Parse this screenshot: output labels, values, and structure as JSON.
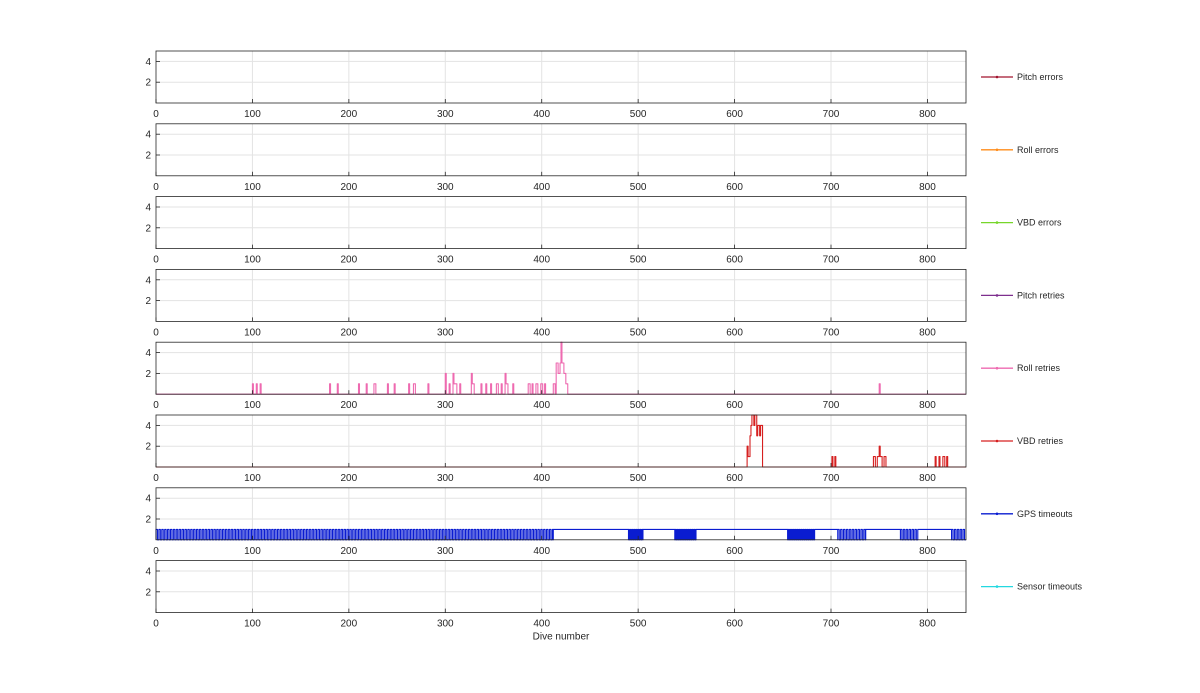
{
  "chart_data": {
    "type": "line",
    "xlabel": "Dive number",
    "xlim": [
      0,
      840
    ],
    "xticks": [
      0,
      100,
      200,
      300,
      400,
      500,
      600,
      700,
      800
    ],
    "ylim": [
      0,
      5
    ],
    "yticks": [
      2,
      4
    ],
    "grid": true,
    "legend_placement": "right of each panel",
    "series": [
      {
        "name": "Pitch errors",
        "color": "#a2142f",
        "points": []
      },
      {
        "name": "Roll errors",
        "color": "#ff8c1a",
        "points": []
      },
      {
        "name": "VBD errors",
        "color": "#77d62a",
        "points": []
      },
      {
        "name": "Pitch retries",
        "color": "#7e2f8e",
        "points": []
      },
      {
        "name": "Roll retries",
        "color": "#ee6ab0",
        "points": [
          [
            0,
            0
          ],
          [
            100,
            0
          ],
          [
            100,
            1
          ],
          [
            101,
            1
          ],
          [
            101,
            0
          ],
          [
            104,
            0
          ],
          [
            104,
            1
          ],
          [
            105,
            1
          ],
          [
            105,
            0
          ],
          [
            108,
            0
          ],
          [
            108,
            1
          ],
          [
            109,
            1
          ],
          [
            109,
            0
          ],
          [
            180,
            0
          ],
          [
            180,
            1
          ],
          [
            181,
            1
          ],
          [
            181,
            0
          ],
          [
            188,
            0
          ],
          [
            188,
            1
          ],
          [
            189,
            1
          ],
          [
            189,
            0
          ],
          [
            210,
            0
          ],
          [
            210,
            1
          ],
          [
            211,
            1
          ],
          [
            211,
            0
          ],
          [
            218,
            0
          ],
          [
            218,
            1
          ],
          [
            219,
            1
          ],
          [
            219,
            0
          ],
          [
            226,
            0
          ],
          [
            226,
            1
          ],
          [
            228,
            1
          ],
          [
            228,
            0
          ],
          [
            240,
            0
          ],
          [
            240,
            1
          ],
          [
            241,
            1
          ],
          [
            241,
            0
          ],
          [
            247,
            0
          ],
          [
            247,
            1
          ],
          [
            248,
            1
          ],
          [
            248,
            0
          ],
          [
            262,
            0
          ],
          [
            262,
            1
          ],
          [
            263,
            1
          ],
          [
            263,
            0
          ],
          [
            267,
            0
          ],
          [
            267,
            1
          ],
          [
            269,
            1
          ],
          [
            269,
            0
          ],
          [
            282,
            0
          ],
          [
            282,
            1
          ],
          [
            283,
            1
          ],
          [
            283,
            0
          ],
          [
            300,
            0
          ],
          [
            300,
            2
          ],
          [
            301,
            2
          ],
          [
            301,
            0
          ],
          [
            304,
            0
          ],
          [
            304,
            1
          ],
          [
            305,
            1
          ],
          [
            305,
            0
          ],
          [
            308,
            0
          ],
          [
            308,
            2
          ],
          [
            309,
            2
          ],
          [
            309,
            1
          ],
          [
            312,
            1
          ],
          [
            312,
            0
          ],
          [
            315,
            0
          ],
          [
            315,
            1
          ],
          [
            316,
            1
          ],
          [
            316,
            0
          ],
          [
            327,
            0
          ],
          [
            327,
            2
          ],
          [
            328,
            2
          ],
          [
            328,
            1
          ],
          [
            330,
            1
          ],
          [
            330,
            0
          ],
          [
            337,
            0
          ],
          [
            337,
            1
          ],
          [
            338,
            1
          ],
          [
            338,
            0
          ],
          [
            342,
            0
          ],
          [
            342,
            1
          ],
          [
            343,
            1
          ],
          [
            343,
            0
          ],
          [
            347,
            0
          ],
          [
            347,
            1
          ],
          [
            348,
            1
          ],
          [
            348,
            0
          ],
          [
            353,
            0
          ],
          [
            353,
            1
          ],
          [
            355,
            1
          ],
          [
            355,
            0
          ],
          [
            358,
            0
          ],
          [
            358,
            1
          ],
          [
            359,
            1
          ],
          [
            359,
            0
          ],
          [
            362,
            0
          ],
          [
            362,
            2
          ],
          [
            363,
            2
          ],
          [
            363,
            1
          ],
          [
            365,
            1
          ],
          [
            365,
            0
          ],
          [
            370,
            0
          ],
          [
            370,
            1
          ],
          [
            371,
            1
          ],
          [
            371,
            0
          ],
          [
            386,
            0
          ],
          [
            386,
            1
          ],
          [
            388,
            1
          ],
          [
            388,
            0
          ],
          [
            390,
            0
          ],
          [
            390,
            1
          ],
          [
            391,
            1
          ],
          [
            391,
            0
          ],
          [
            394,
            0
          ],
          [
            394,
            1
          ],
          [
            396,
            1
          ],
          [
            396,
            0
          ],
          [
            399,
            0
          ],
          [
            399,
            1
          ],
          [
            401,
            1
          ],
          [
            401,
            0
          ],
          [
            403,
            0
          ],
          [
            403,
            1
          ],
          [
            404,
            1
          ],
          [
            404,
            0
          ],
          [
            412,
            0
          ],
          [
            412,
            1
          ],
          [
            414,
            1
          ],
          [
            414,
            0
          ],
          [
            415,
            0
          ],
          [
            415,
            3
          ],
          [
            417,
            3
          ],
          [
            417,
            2
          ],
          [
            419,
            2
          ],
          [
            419,
            3
          ],
          [
            420,
            3
          ],
          [
            420,
            5
          ],
          [
            421,
            5
          ],
          [
            421,
            3
          ],
          [
            423,
            3
          ],
          [
            423,
            2
          ],
          [
            425,
            2
          ],
          [
            425,
            1
          ],
          [
            427,
            1
          ],
          [
            427,
            0
          ],
          [
            750,
            0
          ],
          [
            750,
            1
          ],
          [
            751,
            1
          ],
          [
            751,
            0
          ],
          [
            840,
            0
          ]
        ]
      },
      {
        "name": "VBD retries",
        "color": "#d62020",
        "points": [
          [
            0,
            0
          ],
          [
            613,
            0
          ],
          [
            613,
            2
          ],
          [
            614,
            2
          ],
          [
            614,
            1
          ],
          [
            616,
            1
          ],
          [
            616,
            3
          ],
          [
            617,
            3
          ],
          [
            617,
            4
          ],
          [
            618,
            4
          ],
          [
            618,
            5
          ],
          [
            620,
            5
          ],
          [
            620,
            4
          ],
          [
            621,
            4
          ],
          [
            621,
            5
          ],
          [
            623,
            5
          ],
          [
            623,
            3
          ],
          [
            624,
            3
          ],
          [
            624,
            4
          ],
          [
            626,
            4
          ],
          [
            626,
            3
          ],
          [
            627,
            3
          ],
          [
            627,
            4
          ],
          [
            629,
            4
          ],
          [
            629,
            0
          ],
          [
            701,
            0
          ],
          [
            701,
            1
          ],
          [
            702,
            1
          ],
          [
            702,
            0
          ],
          [
            704,
            0
          ],
          [
            704,
            1
          ],
          [
            705,
            1
          ],
          [
            705,
            0
          ],
          [
            744,
            0
          ],
          [
            744,
            1
          ],
          [
            746,
            1
          ],
          [
            746,
            0
          ],
          [
            748,
            0
          ],
          [
            748,
            1
          ],
          [
            750,
            1
          ],
          [
            750,
            2
          ],
          [
            751,
            2
          ],
          [
            751,
            1
          ],
          [
            753,
            1
          ],
          [
            753,
            0
          ],
          [
            755,
            0
          ],
          [
            755,
            1
          ],
          [
            757,
            1
          ],
          [
            757,
            0
          ],
          [
            808,
            0
          ],
          [
            808,
            1
          ],
          [
            809,
            1
          ],
          [
            809,
            0
          ],
          [
            812,
            0
          ],
          [
            812,
            1
          ],
          [
            813,
            1
          ],
          [
            813,
            0
          ],
          [
            816,
            0
          ],
          [
            816,
            1
          ],
          [
            818,
            1
          ],
          [
            818,
            0
          ],
          [
            820,
            0
          ],
          [
            820,
            1
          ],
          [
            821,
            1
          ],
          [
            821,
            0
          ],
          [
            840,
            0
          ]
        ]
      },
      {
        "name": "GPS timeouts",
        "color": "#0a1cd1",
        "square_wave": [
          {
            "from": 0,
            "to": 412,
            "period": 3
          },
          {
            "from": 412,
            "to": 490,
            "level": 1
          },
          {
            "from": 490,
            "to": 505,
            "period": 2
          },
          {
            "from": 505,
            "to": 538,
            "level": 1
          },
          {
            "from": 538,
            "to": 560,
            "period": 2
          },
          {
            "from": 560,
            "to": 655,
            "level": 1
          },
          {
            "from": 655,
            "to": 683,
            "period": 2
          },
          {
            "from": 683,
            "to": 707,
            "level": 1
          },
          {
            "from": 707,
            "to": 736,
            "period": 3
          },
          {
            "from": 736,
            "to": 772,
            "level": 1
          },
          {
            "from": 772,
            "to": 790,
            "period": 3
          },
          {
            "from": 790,
            "to": 825,
            "level": 1
          },
          {
            "from": 825,
            "to": 840,
            "period": 3
          }
        ]
      },
      {
        "name": "Sensor timeouts",
        "color": "#24d8e0",
        "points": []
      }
    ]
  }
}
